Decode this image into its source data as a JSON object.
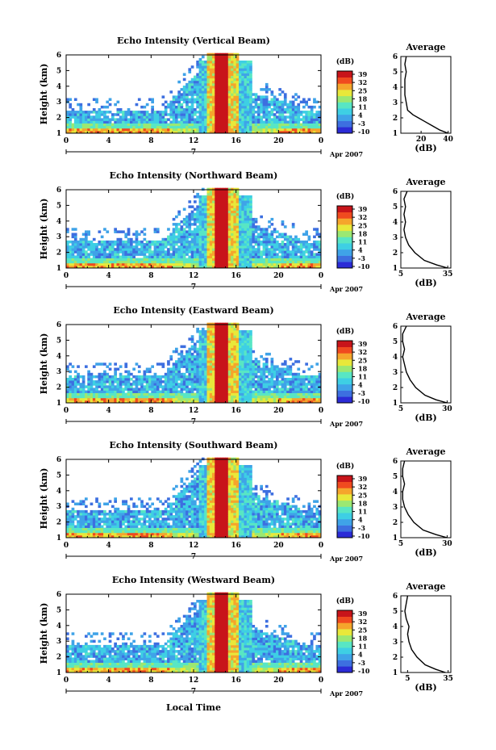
{
  "figure": {
    "xlabel": "Local Time",
    "date_label": "Apr 2007",
    "day_label": "7",
    "ylabel": "Height (km)",
    "colorbar_unit": "(dB)",
    "colorbar_ticks": [
      "39",
      "32",
      "25",
      "18",
      "11",
      "4",
      "-3",
      "-10"
    ],
    "avg_title": "Average",
    "avg_xlabel": "(dB)",
    "colors": [
      "#2b2bd6",
      "#3d6fe0",
      "#3fa3e8",
      "#3ecfe4",
      "#58e6c4",
      "#9be872",
      "#e8e83a",
      "#f5a52c",
      "#f04a1f",
      "#c8141a"
    ]
  },
  "chart_data": [
    {
      "type": "heatmap",
      "title": "Echo Intensity (Vertical Beam)",
      "xticks": [
        "0",
        "4",
        "8",
        "12",
        "16",
        "20",
        "0"
      ],
      "yticks": [
        "1",
        "2",
        "3",
        "4",
        "5",
        "6"
      ],
      "xlim": [
        0,
        24
      ],
      "ylim": [
        1,
        6
      ],
      "avg": {
        "xticks": [
          "20",
          "40"
        ],
        "xlim": [
          5,
          42
        ],
        "profile": [
          [
            40,
            1.0
          ],
          [
            34,
            1.2
          ],
          [
            28,
            1.5
          ],
          [
            22,
            1.8
          ],
          [
            18,
            2.0
          ],
          [
            14,
            2.2
          ],
          [
            10,
            2.5
          ],
          [
            9,
            3.0
          ],
          [
            8,
            3.5
          ],
          [
            8,
            4.0
          ],
          [
            8,
            4.5
          ],
          [
            9,
            5.0
          ],
          [
            8,
            5.5
          ],
          [
            9,
            6.0
          ]
        ]
      }
    },
    {
      "type": "heatmap",
      "title": "Echo Intensity (Northward Beam)",
      "xticks": [
        "0",
        "4",
        "8",
        "12",
        "16",
        "20",
        "0"
      ],
      "yticks": [
        "1",
        "2",
        "3",
        "4",
        "5",
        "6"
      ],
      "xlim": [
        0,
        24
      ],
      "ylim": [
        1,
        6
      ],
      "avg": {
        "xticks": [
          "5",
          "35"
        ],
        "xlim": [
          5,
          37
        ],
        "profile": [
          [
            35,
            1.0
          ],
          [
            28,
            1.2
          ],
          [
            20,
            1.5
          ],
          [
            14,
            2.0
          ],
          [
            10,
            2.5
          ],
          [
            8,
            3.0
          ],
          [
            7,
            3.5
          ],
          [
            8,
            4.0
          ],
          [
            7,
            4.5
          ],
          [
            8,
            5.0
          ],
          [
            7,
            5.5
          ],
          [
            9,
            6.0
          ]
        ]
      }
    },
    {
      "type": "heatmap",
      "title": "Echo Intensity (Eastward Beam)",
      "xticks": [
        "0",
        "4",
        "8",
        "12",
        "16",
        "20",
        "0"
      ],
      "yticks": [
        "1",
        "2",
        "3",
        "4",
        "5",
        "6"
      ],
      "xlim": [
        0,
        24
      ],
      "ylim": [
        1,
        6
      ],
      "avg": {
        "xticks": [
          "5",
          "30"
        ],
        "xlim": [
          5,
          32
        ],
        "profile": [
          [
            30,
            1.0
          ],
          [
            24,
            1.2
          ],
          [
            18,
            1.5
          ],
          [
            13,
            2.0
          ],
          [
            10,
            2.5
          ],
          [
            8,
            3.0
          ],
          [
            7,
            3.5
          ],
          [
            6,
            4.0
          ],
          [
            7,
            4.5
          ],
          [
            6,
            5.0
          ],
          [
            6,
            5.5
          ],
          [
            8,
            6.0
          ]
        ]
      }
    },
    {
      "type": "heatmap",
      "title": "Echo Intensity (Southward Beam)",
      "xticks": [
        "0",
        "4",
        "8",
        "12",
        "16",
        "20",
        "0"
      ],
      "yticks": [
        "1",
        "2",
        "3",
        "4",
        "5",
        "6"
      ],
      "xlim": [
        0,
        24
      ],
      "ylim": [
        1,
        6
      ],
      "avg": {
        "xticks": [
          "5",
          "30"
        ],
        "xlim": [
          5,
          32
        ],
        "profile": [
          [
            30,
            1.0
          ],
          [
            24,
            1.2
          ],
          [
            17,
            1.5
          ],
          [
            12,
            2.0
          ],
          [
            9,
            2.5
          ],
          [
            7,
            3.0
          ],
          [
            6,
            3.5
          ],
          [
            6,
            4.0
          ],
          [
            7,
            4.5
          ],
          [
            6,
            5.0
          ],
          [
            6,
            5.5
          ],
          [
            7,
            6.0
          ]
        ]
      }
    },
    {
      "type": "heatmap",
      "title": "Echo Intensity (Westward Beam)",
      "xticks": [
        "0",
        "4",
        "8",
        "12",
        "16",
        "20",
        "0"
      ],
      "yticks": [
        "1",
        "2",
        "3",
        "4",
        "5",
        "6"
      ],
      "xlim": [
        0,
        24
      ],
      "ylim": [
        1,
        6
      ],
      "avg": {
        "xticks": [
          "5",
          "35"
        ],
        "xlim": [
          0,
          37
        ],
        "profile": [
          [
            33,
            1.0
          ],
          [
            26,
            1.2
          ],
          [
            18,
            1.5
          ],
          [
            12,
            2.0
          ],
          [
            8,
            2.5
          ],
          [
            6,
            3.0
          ],
          [
            5,
            3.5
          ],
          [
            6,
            4.0
          ],
          [
            4,
            4.5
          ],
          [
            3,
            5.0
          ],
          [
            4,
            5.5
          ],
          [
            5,
            6.0
          ]
        ]
      }
    }
  ]
}
